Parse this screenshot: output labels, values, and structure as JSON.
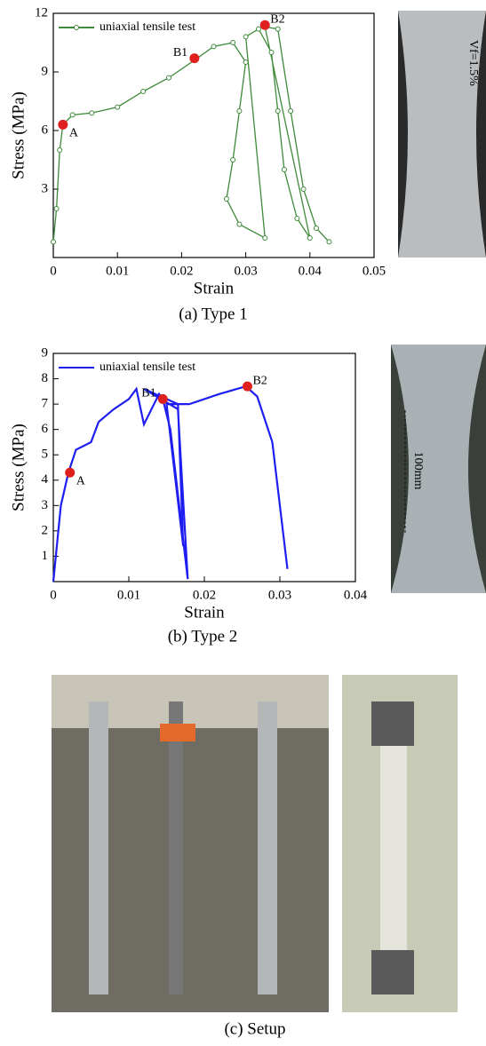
{
  "chart_data": [
    {
      "type": "line",
      "xlabel": "Strain",
      "ylabel": "Stress (MPa)",
      "xlim": [
        0,
        0.05
      ],
      "ylim": [
        -0.5,
        12
      ],
      "xticks": [
        0,
        0.01,
        0.02,
        0.03,
        0.04,
        0.05
      ],
      "yticks": [
        3,
        6,
        9,
        12
      ],
      "markers": true,
      "series": [
        {
          "name": "uniaxial tensile test",
          "color": "#3f8a3a",
          "x": [
            0,
            0.0005,
            0.001,
            0.0015,
            0.003,
            0.006,
            0.01,
            0.014,
            0.018,
            0.022,
            0.025,
            0.028,
            0.03,
            0.029,
            0.028,
            0.027,
            0.029,
            0.033,
            0.03,
            0.032,
            0.034,
            0.035,
            0.036,
            0.038,
            0.04,
            0.033,
            0.035,
            0.037,
            0.039,
            0.041,
            0.043
          ],
          "values": [
            0.3,
            2,
            5,
            6.3,
            6.8,
            6.9,
            7.2,
            8.0,
            8.7,
            9.6,
            10.3,
            10.5,
            9.5,
            7,
            4.5,
            2.5,
            1.2,
            0.5,
            10.8,
            11.2,
            10,
            7,
            4,
            1.5,
            0.5,
            11.3,
            11.2,
            7,
            3,
            1,
            0.3
          ]
        }
      ],
      "points": {
        "color": "#e0201e",
        "labels": [
          "A",
          "B1",
          "B2"
        ],
        "x": [
          0.0015,
          0.022,
          0.033
        ],
        "y": [
          6.3,
          9.7,
          11.4
        ]
      }
    },
    {
      "type": "line",
      "xlabel": "Strain",
      "ylabel": "Stress (MPa)",
      "xlim": [
        0,
        0.04
      ],
      "ylim": [
        0,
        9
      ],
      "xticks": [
        0,
        0.01,
        0.02,
        0.03,
        0.04
      ],
      "yticks": [
        1,
        2,
        3,
        4,
        5,
        6,
        7,
        8,
        9
      ],
      "markers": false,
      "series": [
        {
          "name": "uniaxial tensile test",
          "color": "#1e1ef0",
          "x": [
            0,
            0.001,
            0.002,
            0.003,
            0.005,
            0.006,
            0.008,
            0.01,
            0.011,
            0.012,
            0.014,
            0.0145,
            0.0155,
            0.0178,
            0.0165,
            0.012,
            0.0165,
            0.0172,
            0.015,
            0.018,
            0.022,
            0.0255,
            0.027,
            0.029,
            0.031
          ],
          "values": [
            0,
            3,
            4.3,
            5.2,
            5.5,
            6.3,
            6.8,
            7.2,
            7.6,
            6.2,
            7.4,
            7.2,
            6,
            0.1,
            6.8,
            7.6,
            7.0,
            1.4,
            7.0,
            7.0,
            7.4,
            7.7,
            7.3,
            5.5,
            0.5
          ]
        }
      ],
      "points": {
        "color": "#e0201e",
        "labels": [
          "A",
          "B1",
          "B2"
        ],
        "x": [
          0.0022,
          0.0145,
          0.0257
        ],
        "y": [
          4.3,
          7.2,
          7.7
        ]
      }
    }
  ],
  "captions": [
    "(a) Type 1",
    "(b) Type 2",
    "(c) Setup"
  ],
  "photo_texts": [
    "Vf=1.5%",
    "100mm"
  ]
}
